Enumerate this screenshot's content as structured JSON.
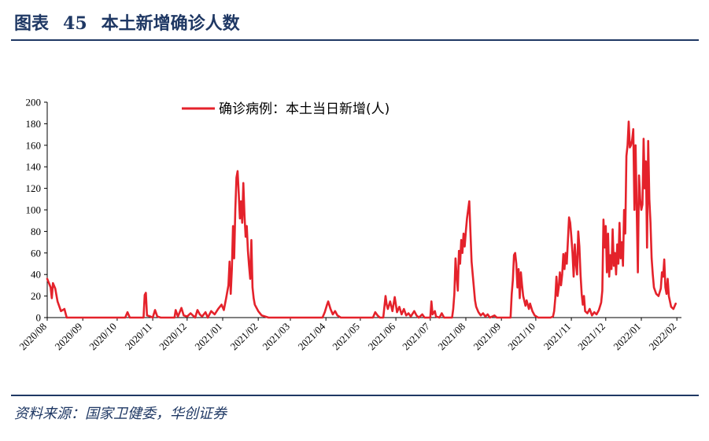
{
  "header": {
    "figure_label": "图表",
    "figure_number": "45",
    "title": "本土新增确诊人数"
  },
  "source": "资料来源：国家卫健委，华创证券",
  "colors": {
    "series": "#e4222b",
    "title": "#1f3864",
    "axis": "#000000"
  },
  "chart_data": {
    "type": "line",
    "series": [
      {
        "name": "确诊病例：本土当日新增(人)",
        "points": [
          [
            "2020-08-01",
            36
          ],
          [
            "2020-08-04",
            28
          ],
          [
            "2020-08-05",
            18
          ],
          [
            "2020-08-06",
            32
          ],
          [
            "2020-08-08",
            27
          ],
          [
            "2020-08-10",
            15
          ],
          [
            "2020-08-13",
            6
          ],
          [
            "2020-08-16",
            8
          ],
          [
            "2020-08-18",
            0
          ],
          [
            "2020-10-08",
            0
          ],
          [
            "2020-10-10",
            5
          ],
          [
            "2020-10-12",
            0
          ],
          [
            "2020-10-24",
            0
          ],
          [
            "2020-10-25",
            21
          ],
          [
            "2020-10-26",
            23
          ],
          [
            "2020-10-27",
            2
          ],
          [
            "2020-10-30",
            1
          ],
          [
            "2020-11-01",
            0
          ],
          [
            "2020-11-03",
            7
          ],
          [
            "2020-11-05",
            1
          ],
          [
            "2020-11-08",
            0
          ],
          [
            "2020-11-20",
            0
          ],
          [
            "2020-11-21",
            7
          ],
          [
            "2020-11-23",
            1
          ],
          [
            "2020-11-26",
            9
          ],
          [
            "2020-11-28",
            2
          ],
          [
            "2020-12-01",
            1
          ],
          [
            "2020-12-04",
            4
          ],
          [
            "2020-12-06",
            2
          ],
          [
            "2020-12-08",
            0
          ],
          [
            "2020-12-10",
            7
          ],
          [
            "2020-12-12",
            3
          ],
          [
            "2020-12-14",
            1
          ],
          [
            "2020-12-17",
            5
          ],
          [
            "2020-12-19",
            0
          ],
          [
            "2020-12-22",
            6
          ],
          [
            "2020-12-25",
            3
          ],
          [
            "2020-12-28",
            8
          ],
          [
            "2020-12-31",
            12
          ],
          [
            "2021-01-02",
            7
          ],
          [
            "2021-01-04",
            18
          ],
          [
            "2021-01-06",
            30
          ],
          [
            "2021-01-07",
            52
          ],
          [
            "2021-01-08",
            22
          ],
          [
            "2021-01-09",
            45
          ],
          [
            "2021-01-10",
            85
          ],
          [
            "2021-01-11",
            55
          ],
          [
            "2021-01-12",
            100
          ],
          [
            "2021-01-13",
            130
          ],
          [
            "2021-01-14",
            136
          ],
          [
            "2021-01-15",
            115
          ],
          [
            "2021-01-16",
            92
          ],
          [
            "2021-01-17",
            108
          ],
          [
            "2021-01-18",
            88
          ],
          [
            "2021-01-19",
            125
          ],
          [
            "2021-01-20",
            95
          ],
          [
            "2021-01-21",
            75
          ],
          [
            "2021-01-22",
            85
          ],
          [
            "2021-01-23",
            62
          ],
          [
            "2021-01-24",
            48
          ],
          [
            "2021-01-25",
            36
          ],
          [
            "2021-01-26",
            72
          ],
          [
            "2021-01-27",
            28
          ],
          [
            "2021-01-28",
            18
          ],
          [
            "2021-01-29",
            12
          ],
          [
            "2021-02-01",
            6
          ],
          [
            "2021-02-04",
            2
          ],
          [
            "2021-02-10",
            0
          ],
          [
            "2021-03-29",
            0
          ],
          [
            "2021-03-31",
            5
          ],
          [
            "2021-04-02",
            12
          ],
          [
            "2021-04-03",
            15
          ],
          [
            "2021-04-05",
            8
          ],
          [
            "2021-04-07",
            3
          ],
          [
            "2021-04-09",
            6
          ],
          [
            "2021-04-11",
            2
          ],
          [
            "2021-04-14",
            0
          ],
          [
            "2021-05-12",
            0
          ],
          [
            "2021-05-14",
            5
          ],
          [
            "2021-05-16",
            2
          ],
          [
            "2021-05-18",
            0
          ],
          [
            "2021-05-21",
            0
          ],
          [
            "2021-05-23",
            20
          ],
          [
            "2021-05-24",
            12
          ],
          [
            "2021-05-25",
            8
          ],
          [
            "2021-05-27",
            15
          ],
          [
            "2021-05-29",
            6
          ],
          [
            "2021-05-31",
            19
          ],
          [
            "2021-06-02",
            5
          ],
          [
            "2021-06-04",
            10
          ],
          [
            "2021-06-06",
            3
          ],
          [
            "2021-06-08",
            8
          ],
          [
            "2021-06-10",
            2
          ],
          [
            "2021-06-12",
            4
          ],
          [
            "2021-06-14",
            1
          ],
          [
            "2021-06-17",
            6
          ],
          [
            "2021-06-19",
            2
          ],
          [
            "2021-06-21",
            0
          ],
          [
            "2021-06-24",
            3
          ],
          [
            "2021-06-26",
            0
          ],
          [
            "2021-07-01",
            0
          ],
          [
            "2021-07-02",
            15
          ],
          [
            "2021-07-03",
            3
          ],
          [
            "2021-07-05",
            6
          ],
          [
            "2021-07-06",
            1
          ],
          [
            "2021-07-09",
            0
          ],
          [
            "2021-07-11",
            4
          ],
          [
            "2021-07-13",
            0
          ],
          [
            "2021-07-20",
            0
          ],
          [
            "2021-07-21",
            8
          ],
          [
            "2021-07-22",
            22
          ],
          [
            "2021-07-23",
            55
          ],
          [
            "2021-07-24",
            38
          ],
          [
            "2021-07-25",
            25
          ],
          [
            "2021-07-26",
            62
          ],
          [
            "2021-07-27",
            50
          ],
          [
            "2021-07-28",
            72
          ],
          [
            "2021-07-29",
            60
          ],
          [
            "2021-07-30",
            78
          ],
          [
            "2021-07-31",
            66
          ],
          [
            "2021-08-01",
            80
          ],
          [
            "2021-08-02",
            92
          ],
          [
            "2021-08-03",
            100
          ],
          [
            "2021-08-04",
            108
          ],
          [
            "2021-08-05",
            80
          ],
          [
            "2021-08-06",
            52
          ],
          [
            "2021-08-07",
            40
          ],
          [
            "2021-08-08",
            28
          ],
          [
            "2021-08-09",
            16
          ],
          [
            "2021-08-10",
            10
          ],
          [
            "2021-08-12",
            5
          ],
          [
            "2021-08-14",
            2
          ],
          [
            "2021-08-16",
            4
          ],
          [
            "2021-08-18",
            1
          ],
          [
            "2021-08-20",
            3
          ],
          [
            "2021-08-22",
            0
          ],
          [
            "2021-08-26",
            2
          ],
          [
            "2021-08-28",
            0
          ],
          [
            "2021-09-09",
            0
          ],
          [
            "2021-09-10",
            22
          ],
          [
            "2021-09-11",
            35
          ],
          [
            "2021-09-12",
            58
          ],
          [
            "2021-09-13",
            60
          ],
          [
            "2021-09-14",
            50
          ],
          [
            "2021-09-15",
            28
          ],
          [
            "2021-09-16",
            45
          ],
          [
            "2021-09-17",
            18
          ],
          [
            "2021-09-18",
            42
          ],
          [
            "2021-09-19",
            30
          ],
          [
            "2021-09-20",
            20
          ],
          [
            "2021-09-22",
            11
          ],
          [
            "2021-09-23",
            16
          ],
          [
            "2021-09-25",
            8
          ],
          [
            "2021-09-26",
            13
          ],
          [
            "2021-09-28",
            6
          ],
          [
            "2021-09-30",
            2
          ],
          [
            "2021-10-03",
            0
          ],
          [
            "2021-10-14",
            0
          ],
          [
            "2021-10-16",
            1
          ],
          [
            "2021-10-17",
            6
          ],
          [
            "2021-10-18",
            18
          ],
          [
            "2021-10-19",
            38
          ],
          [
            "2021-10-20",
            20
          ],
          [
            "2021-10-21",
            28
          ],
          [
            "2021-10-22",
            42
          ],
          [
            "2021-10-23",
            30
          ],
          [
            "2021-10-24",
            40
          ],
          [
            "2021-10-25",
            59
          ],
          [
            "2021-10-26",
            45
          ],
          [
            "2021-10-27",
            60
          ],
          [
            "2021-10-28",
            50
          ],
          [
            "2021-10-30",
            93
          ],
          [
            "2021-10-31",
            88
          ],
          [
            "2021-11-01",
            75
          ],
          [
            "2021-11-02",
            60
          ],
          [
            "2021-11-03",
            38
          ],
          [
            "2021-11-04",
            68
          ],
          [
            "2021-11-05",
            50
          ],
          [
            "2021-11-06",
            40
          ],
          [
            "2021-11-07",
            80
          ],
          [
            "2021-11-08",
            66
          ],
          [
            "2021-11-09",
            40
          ],
          [
            "2021-11-10",
            22
          ],
          [
            "2021-11-11",
            12
          ],
          [
            "2021-11-12",
            20
          ],
          [
            "2021-11-13",
            6
          ],
          [
            "2021-11-15",
            4
          ],
          [
            "2021-11-17",
            8
          ],
          [
            "2021-11-19",
            2
          ],
          [
            "2021-11-21",
            5
          ],
          [
            "2021-11-23",
            3
          ],
          [
            "2021-11-25",
            7
          ],
          [
            "2021-11-27",
            14
          ],
          [
            "2021-11-28",
            25
          ],
          [
            "2021-11-29",
            91
          ],
          [
            "2021-11-30",
            65
          ],
          [
            "2021-12-01",
            85
          ],
          [
            "2021-12-02",
            42
          ],
          [
            "2021-12-03",
            78
          ],
          [
            "2021-12-04",
            38
          ],
          [
            "2021-12-05",
            58
          ],
          [
            "2021-12-06",
            45
          ],
          [
            "2021-12-07",
            82
          ],
          [
            "2021-12-08",
            48
          ],
          [
            "2021-12-09",
            60
          ],
          [
            "2021-12-10",
            40
          ],
          [
            "2021-12-11",
            68
          ],
          [
            "2021-12-12",
            50
          ],
          [
            "2021-12-13",
            88
          ],
          [
            "2021-12-14",
            55
          ],
          [
            "2021-12-15",
            70
          ],
          [
            "2021-12-16",
            48
          ],
          [
            "2021-12-17",
            100
          ],
          [
            "2021-12-18",
            78
          ],
          [
            "2021-12-19",
            150
          ],
          [
            "2021-12-20",
            160
          ],
          [
            "2021-12-21",
            182
          ],
          [
            "2021-12-22",
            158
          ],
          [
            "2021-12-23",
            160
          ],
          [
            "2021-12-24",
            165
          ],
          [
            "2021-12-25",
            175
          ],
          [
            "2021-12-26",
            100
          ],
          [
            "2021-12-27",
            160
          ],
          [
            "2021-12-28",
            100
          ],
          [
            "2021-12-29",
            42
          ],
          [
            "2021-12-30",
            132
          ],
          [
            "2021-12-31",
            110
          ],
          [
            "2022-01-01",
            100
          ],
          [
            "2022-01-02",
            105
          ],
          [
            "2022-01-03",
            166
          ],
          [
            "2022-01-04",
            120
          ],
          [
            "2022-01-05",
            145
          ],
          [
            "2022-01-06",
            65
          ],
          [
            "2022-01-07",
            164
          ],
          [
            "2022-01-08",
            110
          ],
          [
            "2022-01-09",
            88
          ],
          [
            "2022-01-10",
            55
          ],
          [
            "2022-01-11",
            40
          ],
          [
            "2022-01-12",
            28
          ],
          [
            "2022-01-14",
            22
          ],
          [
            "2022-01-16",
            20
          ],
          [
            "2022-01-18",
            27
          ],
          [
            "2022-01-19",
            42
          ],
          [
            "2022-01-20",
            38
          ],
          [
            "2022-01-21",
            54
          ],
          [
            "2022-01-22",
            28
          ],
          [
            "2022-01-23",
            22
          ],
          [
            "2022-01-24",
            36
          ],
          [
            "2022-01-25",
            20
          ],
          [
            "2022-01-27",
            10
          ],
          [
            "2022-01-29",
            8
          ],
          [
            "2022-01-31",
            13
          ]
        ]
      }
    ],
    "x_ticks": [
      "2020/08",
      "2020/09",
      "2020/10",
      "2020/11",
      "2020/12",
      "2021/01",
      "2021/02",
      "2021/03",
      "2021/04",
      "2021/05",
      "2021/06",
      "2021/07",
      "2021/08",
      "2021/09",
      "2021/10",
      "2021/11",
      "2021/12",
      "2022/01",
      "2022/02"
    ],
    "x_range": [
      "2020-08-01",
      "2022-02-05"
    ],
    "y_ticks": [
      0,
      20,
      40,
      60,
      80,
      100,
      120,
      140,
      160,
      180,
      200
    ],
    "ylim": [
      0,
      200
    ],
    "legend": {
      "position": "top-center",
      "label": "确诊病例：本土当日新增(人)"
    },
    "grid": false
  }
}
